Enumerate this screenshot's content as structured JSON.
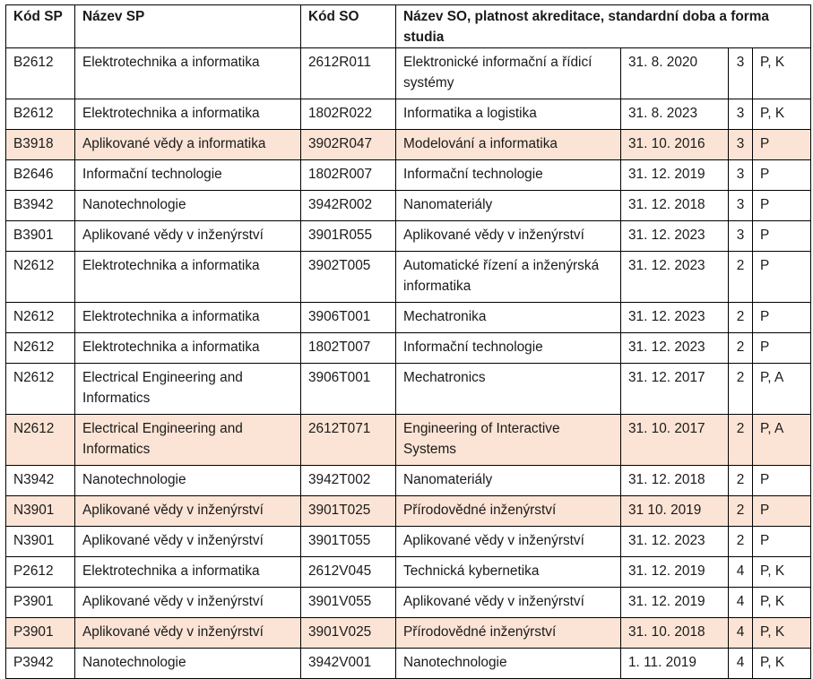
{
  "table": {
    "headers": {
      "kod_sp": "Kód SP",
      "nazev_sp": "Název SP",
      "kod_so": "Kód SO",
      "nazev_so": "Název SO,   platnost  akreditace, standardní doba a forma studia"
    },
    "highlight_color": "#fbe4d5",
    "rows": [
      {
        "kod_sp": "B2612",
        "nazev_sp": "Elektrotechnika a informatika",
        "kod_so": "2612R011",
        "nazev_so": "Elektronické informační a řídicí systémy",
        "platnost": "31. 8. 2020",
        "doba": "3",
        "forma": "P, K",
        "highlighted": false,
        "lines": 2
      },
      {
        "kod_sp": "B2612",
        "nazev_sp": "Elektrotechnika a informatika",
        "kod_so": "1802R022",
        "nazev_so": "Informatika a logistika",
        "platnost": "31. 8. 2023",
        "doba": "3",
        "forma": "P, K",
        "highlighted": false,
        "lines": 1
      },
      {
        "kod_sp": "B3918",
        "nazev_sp": "Aplikované vědy a informatika",
        "kod_so": "3902R047",
        "nazev_so": "Modelování a informatika",
        "platnost": "31. 10. 2016",
        "doba": "3",
        "forma": "P",
        "highlighted": true,
        "lines": 1
      },
      {
        "kod_sp": "B2646",
        "nazev_sp": "Informační technologie",
        "kod_so": "1802R007",
        "nazev_so": "Informační technologie",
        "platnost": "31. 12. 2019",
        "doba": "3",
        "forma": "P",
        "highlighted": false,
        "lines": 1
      },
      {
        "kod_sp": "B3942",
        "nazev_sp": "Nanotechnologie",
        "kod_so": "3942R002",
        "nazev_so": "Nanomateriály",
        "platnost": "31. 12. 2018",
        "doba": "3",
        "forma": "P",
        "highlighted": false,
        "lines": 1
      },
      {
        "kod_sp": "B3901",
        "nazev_sp": "Aplikované vědy v inženýrství",
        "kod_so": "3901R055",
        "nazev_so": "Aplikované vědy v inženýrství",
        "platnost": "31. 12. 2023",
        "doba": "3",
        "forma": "P",
        "highlighted": false,
        "lines": 1
      },
      {
        "kod_sp": "N2612",
        "nazev_sp": "Elektrotechnika a informatika",
        "kod_so": "3902T005",
        "nazev_so": "Automatické řízení a inženýrská informatika",
        "platnost": "31. 12. 2023",
        "doba": "2",
        "forma": "P",
        "highlighted": false,
        "lines": 2
      },
      {
        "kod_sp": "N2612",
        "nazev_sp": "Elektrotechnika a informatika",
        "kod_so": "3906T001",
        "nazev_so": "Mechatronika",
        "platnost": "31. 12. 2023",
        "doba": "2",
        "forma": "P",
        "highlighted": false,
        "lines": 1
      },
      {
        "kod_sp": "N2612",
        "nazev_sp": "Elektrotechnika a informatika",
        "kod_so": "1802T007",
        "nazev_so": "Informační technologie",
        "platnost": "31. 12. 2023",
        "doba": "2",
        "forma": "P",
        "highlighted": false,
        "lines": 1
      },
      {
        "kod_sp": "N2612",
        "nazev_sp": "Electrical Engineering and Informatics",
        "kod_so": "3906T001",
        "nazev_so": "Mechatronics",
        "platnost": "31. 12. 2017",
        "doba": "2",
        "forma": "P, A",
        "highlighted": false,
        "lines": 2
      },
      {
        "kod_sp": "N2612",
        "nazev_sp": "Electrical Engineering and Informatics",
        "kod_so": "2612T071",
        "nazev_so": "Engineering of Interactive Systems",
        "platnost": "31. 10. 2017",
        "doba": "2",
        "forma": "P, A",
        "highlighted": true,
        "lines": 2
      },
      {
        "kod_sp": "N3942",
        "nazev_sp": "Nanotechnologie",
        "kod_so": "3942T002",
        "nazev_so": "Nanomateriály",
        "platnost": "31. 12. 2018",
        "doba": "2",
        "forma": "P",
        "highlighted": false,
        "lines": 1
      },
      {
        "kod_sp": "N3901",
        "nazev_sp": "Aplikované vědy v inženýrství",
        "kod_so": "3901T025",
        "nazev_so": "Přírodovědné inženýrství",
        "platnost": "31 10. 2019",
        "doba": "2",
        "forma": "P",
        "highlighted": true,
        "lines": 1
      },
      {
        "kod_sp": "N3901",
        "nazev_sp": "Aplikované vědy v inženýrství",
        "kod_so": "3901T055",
        "nazev_so": "Aplikované vědy v inženýrství",
        "platnost": "31. 12. 2023",
        "doba": "2",
        "forma": "P",
        "highlighted": false,
        "lines": 1
      },
      {
        "kod_sp": "P2612",
        "nazev_sp": "Elektrotechnika a informatika",
        "kod_so": "2612V045",
        "nazev_so": "Technická kybernetika",
        "platnost": "31. 12. 2019",
        "doba": "4",
        "forma": "P, K",
        "highlighted": false,
        "lines": 1
      },
      {
        "kod_sp": "P3901",
        "nazev_sp": "Aplikované vědy v inženýrství",
        "kod_so": "3901V055",
        "nazev_so": "Aplikované vědy v inženýrství",
        "platnost": "31. 12. 2019",
        "doba": "4",
        "forma": "P, K",
        "highlighted": false,
        "lines": 1
      },
      {
        "kod_sp": "P3901",
        "nazev_sp": "Aplikované vědy v inženýrství",
        "kod_so": "3901V025",
        "nazev_so": "Přírodovědné inženýrství",
        "platnost": "31. 10. 2018",
        "doba": "4",
        "forma": "P, K",
        "highlighted": true,
        "lines": 1
      },
      {
        "kod_sp": "P3942",
        "nazev_sp": "Nanotechnologie",
        "kod_so": "3942V001",
        "nazev_so": "Nanotechnologie",
        "platnost": "1. 11. 2019",
        "doba": "4",
        "forma": "P, K",
        "highlighted": false,
        "lines": 1
      }
    ]
  }
}
